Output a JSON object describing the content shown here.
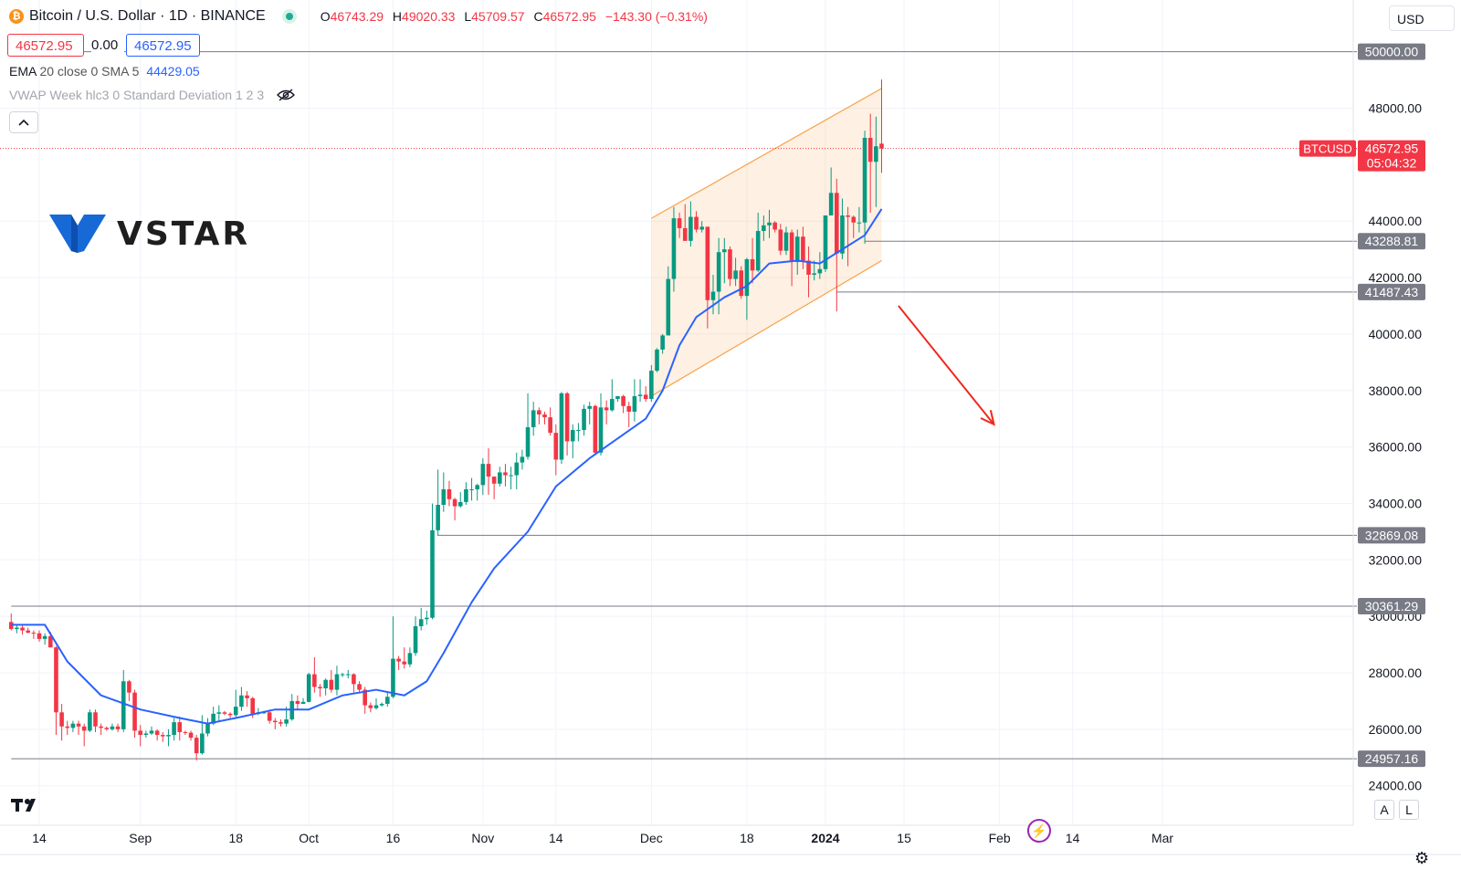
{
  "header": {
    "symbol_title": "Bitcoin / U.S. Dollar · 1D · BINANCE",
    "coin_glyph": "₿",
    "ohlc": {
      "o_label": "O",
      "o": "46743.29",
      "h_label": "H",
      "h": "49020.33",
      "l_label": "L",
      "l": "45709.57",
      "c_label": "C",
      "c": "46572.95",
      "change": "−143.30 (−0.31%)"
    },
    "currency_selector": "USD"
  },
  "price_boxes": {
    "bid": "46572.95",
    "spread": "0.00",
    "ask": "46572.95"
  },
  "indicators": {
    "ema_name": "EMA",
    "ema_params": "20 close 0 SMA 5",
    "ema_value": "44429.05",
    "vwap": "VWAP Week hlc3 0 Standard Deviation 1 2 3"
  },
  "logo": {
    "text": "VSTAR"
  },
  "buttons": {
    "auto": "A",
    "log": "L"
  },
  "colors": {
    "up": "#089981",
    "down": "#f23645",
    "ema": "#2962ff",
    "channel": "#f7a24a",
    "arrow": "#f0281e",
    "hline": "#787b86"
  },
  "chart_data": {
    "type": "candlestick",
    "title": "Bitcoin / U.S. Dollar · 1D · BINANCE",
    "symbol": "BTCUSD",
    "y_axis": {
      "min": 23300,
      "max": 50650,
      "ticks": [
        24000,
        26000,
        28000,
        30000,
        32000,
        34000,
        36000,
        38000,
        40000,
        42000,
        44000,
        48000
      ]
    },
    "x_axis_labels": [
      "14",
      "Sep",
      "18",
      "Oct",
      "16",
      "Nov",
      "14",
      "Dec",
      "18",
      "2024",
      "15",
      "Feb",
      "14",
      "Mar"
    ],
    "x_axis_bold": [
      "2024"
    ],
    "last_price": {
      "label": "BTCUSD",
      "value": 46572.95,
      "display": "46572.95",
      "countdown": "05:04:32"
    },
    "horizontal_levels": [
      {
        "value": 50000.0,
        "display": "50000.00",
        "from": "2023-08-09"
      },
      {
        "value": 43288.81,
        "display": "43288.81",
        "from": "2024-01-08"
      },
      {
        "value": 41487.43,
        "display": "41487.43",
        "from": "2024-01-03"
      },
      {
        "value": 32869.08,
        "display": "32869.08",
        "from": "2023-10-24"
      },
      {
        "value": 30361.29,
        "display": "30361.29",
        "from": "2023-08-09"
      },
      {
        "value": 24957.16,
        "display": "24957.16",
        "from": "2023-08-09"
      }
    ],
    "channel": {
      "upper": [
        [
          "2023-12-01",
          44100
        ],
        [
          "2024-01-11",
          48700
        ]
      ],
      "lower": [
        [
          "2023-12-01",
          37800
        ],
        [
          "2024-01-11",
          42600
        ]
      ]
    },
    "arrow": {
      "from": [
        "2024-01-14",
        41000
      ],
      "to": [
        "2024-01-31",
        36800
      ]
    },
    "ema": [
      [
        "2023-08-09",
        29700
      ],
      [
        "2023-08-15",
        29700
      ],
      [
        "2023-08-19",
        28400
      ],
      [
        "2023-08-25",
        27200
      ],
      [
        "2023-09-01",
        26700
      ],
      [
        "2023-09-08",
        26400
      ],
      [
        "2023-09-13",
        26200
      ],
      [
        "2023-09-18",
        26400
      ],
      [
        "2023-09-25",
        26700
      ],
      [
        "2023-10-01",
        26700
      ],
      [
        "2023-10-07",
        27200
      ],
      [
        "2023-10-13",
        27400
      ],
      [
        "2023-10-18",
        27200
      ],
      [
        "2023-10-22",
        27700
      ],
      [
        "2023-10-25",
        28700
      ],
      [
        "2023-10-30",
        30500
      ],
      [
        "2023-11-03",
        31700
      ],
      [
        "2023-11-09",
        33000
      ],
      [
        "2023-11-14",
        34600
      ],
      [
        "2023-11-20",
        35600
      ],
      [
        "2023-11-25",
        36300
      ],
      [
        "2023-11-30",
        37000
      ],
      [
        "2023-12-03",
        38000
      ],
      [
        "2023-12-06",
        39600
      ],
      [
        "2023-12-09",
        40600
      ],
      [
        "2023-12-14",
        41300
      ],
      [
        "2023-12-18",
        41700
      ],
      [
        "2023-12-22",
        42500
      ],
      [
        "2023-12-27",
        42600
      ],
      [
        "2023-12-31",
        42500
      ],
      [
        "2024-01-04",
        43000
      ],
      [
        "2024-01-08",
        43500
      ],
      [
        "2024-01-11",
        44429
      ]
    ],
    "candles": [
      [
        "2023-08-09",
        29800,
        30100,
        29500,
        29550
      ],
      [
        "2023-08-10",
        29550,
        29700,
        29400,
        29600
      ],
      [
        "2023-08-11",
        29600,
        29700,
        29350,
        29500
      ],
      [
        "2023-08-12",
        29500,
        29600,
        29400,
        29420
      ],
      [
        "2023-08-13",
        29420,
        29500,
        29200,
        29400
      ],
      [
        "2023-08-14",
        29400,
        29500,
        29100,
        29200
      ],
      [
        "2023-08-15",
        29200,
        29400,
        29000,
        29300
      ],
      [
        "2023-08-16",
        29300,
        29450,
        28900,
        28900
      ],
      [
        "2023-08-17",
        28900,
        28950,
        25800,
        26600
      ],
      [
        "2023-08-18",
        26600,
        26900,
        25600,
        26100
      ],
      [
        "2023-08-19",
        26100,
        26300,
        25800,
        26050
      ],
      [
        "2023-08-20",
        26050,
        26300,
        25900,
        26200
      ],
      [
        "2023-08-21",
        26200,
        26300,
        25800,
        26100
      ],
      [
        "2023-08-22",
        26100,
        26200,
        25400,
        25950
      ],
      [
        "2023-08-23",
        25950,
        26700,
        25900,
        26600
      ],
      [
        "2023-08-24",
        26600,
        26700,
        25900,
        26100
      ],
      [
        "2023-08-25",
        26100,
        26200,
        25800,
        26050
      ],
      [
        "2023-08-26",
        26050,
        26100,
        25950,
        26000
      ],
      [
        "2023-08-27",
        26000,
        26200,
        25950,
        26100
      ],
      [
        "2023-08-28",
        26100,
        26200,
        25900,
        26000
      ],
      [
        "2023-08-29",
        26000,
        28100,
        25900,
        27700
      ],
      [
        "2023-08-30",
        27700,
        27750,
        27000,
        27300
      ],
      [
        "2023-08-31",
        27300,
        27400,
        25700,
        25950
      ],
      [
        "2023-09-01",
        25950,
        26150,
        25400,
        25800
      ],
      [
        "2023-09-02",
        25800,
        25950,
        25700,
        25850
      ],
      [
        "2023-09-03",
        25850,
        26100,
        25800,
        25950
      ],
      [
        "2023-09-04",
        25950,
        26000,
        25600,
        25800
      ],
      [
        "2023-09-05",
        25800,
        25900,
        25550,
        25750
      ],
      [
        "2023-09-06",
        25750,
        26000,
        25400,
        25800
      ],
      [
        "2023-09-07",
        25800,
        26400,
        25600,
        26250
      ],
      [
        "2023-09-08",
        26250,
        26450,
        25600,
        25900
      ],
      [
        "2023-09-09",
        25900,
        25950,
        25800,
        25880
      ],
      [
        "2023-09-10",
        25880,
        25950,
        25600,
        25700
      ],
      [
        "2023-09-11",
        25700,
        25800,
        24900,
        25150
      ],
      [
        "2023-09-12",
        25150,
        26500,
        25100,
        25850
      ],
      [
        "2023-09-13",
        25850,
        26400,
        25750,
        26200
      ],
      [
        "2023-09-14",
        26200,
        26800,
        26150,
        26550
      ],
      [
        "2023-09-15",
        26550,
        26850,
        26250,
        26600
      ],
      [
        "2023-09-16",
        26600,
        26650,
        26500,
        26550
      ],
      [
        "2023-09-17",
        26550,
        26600,
        26400,
        26500
      ],
      [
        "2023-09-18",
        26500,
        27400,
        26400,
        26800
      ],
      [
        "2023-09-19",
        26800,
        27500,
        26650,
        27200
      ],
      [
        "2023-09-20",
        27200,
        27350,
        26800,
        27100
      ],
      [
        "2023-09-21",
        27100,
        27150,
        26400,
        26550
      ],
      [
        "2023-09-22",
        26550,
        26750,
        26500,
        26600
      ],
      [
        "2023-09-23",
        26600,
        26650,
        26550,
        26600
      ],
      [
        "2023-09-24",
        26600,
        26700,
        26200,
        26300
      ],
      [
        "2023-09-25",
        26300,
        26400,
        26000,
        26250
      ],
      [
        "2023-09-26",
        26250,
        26350,
        26100,
        26200
      ],
      [
        "2023-09-27",
        26200,
        26800,
        26100,
        26350
      ],
      [
        "2023-09-28",
        26350,
        27250,
        26300,
        27000
      ],
      [
        "2023-09-29",
        27000,
        27200,
        26700,
        26900
      ],
      [
        "2023-09-30",
        26900,
        27100,
        26900,
        26970
      ],
      [
        "2023-10-01",
        26970,
        28000,
        26950,
        27950
      ],
      [
        "2023-10-02",
        27950,
        28550,
        27300,
        27500
      ],
      [
        "2023-10-03",
        27500,
        27600,
        27150,
        27450
      ],
      [
        "2023-10-04",
        27450,
        27800,
        27200,
        27750
      ],
      [
        "2023-10-05",
        27750,
        28100,
        27300,
        27400
      ],
      [
        "2023-10-06",
        27400,
        28250,
        27200,
        27950
      ],
      [
        "2023-10-07",
        27950,
        28000,
        27850,
        27950
      ],
      [
        "2023-10-08",
        27950,
        28100,
        27800,
        27950
      ],
      [
        "2023-10-09",
        27950,
        27980,
        27300,
        27600
      ],
      [
        "2023-10-10",
        27600,
        27700,
        27300,
        27400
      ],
      [
        "2023-10-11",
        27400,
        27500,
        26550,
        26850
      ],
      [
        "2023-10-12",
        26850,
        26950,
        26600,
        26750
      ],
      [
        "2023-10-13",
        26750,
        27100,
        26700,
        26850
      ],
      [
        "2023-10-14",
        26850,
        26950,
        26800,
        26900
      ],
      [
        "2023-10-15",
        26900,
        27300,
        26800,
        27150
      ],
      [
        "2023-10-16",
        27150,
        30000,
        27100,
        28500
      ],
      [
        "2023-10-17",
        28500,
        28600,
        28100,
        28400
      ],
      [
        "2023-10-18",
        28400,
        28900,
        28150,
        28300
      ],
      [
        "2023-10-19",
        28300,
        28900,
        28200,
        28700
      ],
      [
        "2023-10-20",
        28700,
        30000,
        28600,
        29650
      ],
      [
        "2023-10-21",
        29650,
        30300,
        29500,
        29900
      ],
      [
        "2023-10-22",
        29900,
        30200,
        29700,
        29950
      ],
      [
        "2023-10-23",
        29950,
        34000,
        29900,
        33050
      ],
      [
        "2023-10-24",
        33050,
        35200,
        32850,
        33950
      ],
      [
        "2023-10-25",
        33950,
        35100,
        33700,
        34500
      ],
      [
        "2023-10-26",
        34500,
        34800,
        33900,
        34150
      ],
      [
        "2023-10-27",
        34150,
        34200,
        33400,
        33900
      ],
      [
        "2023-10-28",
        33900,
        34400,
        33850,
        34050
      ],
      [
        "2023-10-29",
        34050,
        34750,
        33950,
        34500
      ],
      [
        "2023-10-30",
        34500,
        34900,
        34100,
        34500
      ],
      [
        "2023-10-31",
        34500,
        34700,
        34100,
        34650
      ],
      [
        "2023-11-01",
        34650,
        35600,
        34300,
        35400
      ],
      [
        "2023-11-02",
        35400,
        35950,
        34300,
        34950
      ],
      [
        "2023-11-03",
        34950,
        34950,
        34150,
        34700
      ],
      [
        "2023-11-04",
        34700,
        35300,
        34600,
        35100
      ],
      [
        "2023-11-05",
        35100,
        35400,
        34600,
        35000
      ],
      [
        "2023-11-06",
        35000,
        35300,
        34500,
        35000
      ],
      [
        "2023-11-07",
        35000,
        35800,
        34500,
        35450
      ],
      [
        "2023-11-08",
        35450,
        35900,
        35200,
        35650
      ],
      [
        "2023-11-09",
        35650,
        37900,
        35550,
        36700
      ],
      [
        "2023-11-10",
        36700,
        37600,
        36400,
        37300
      ],
      [
        "2023-11-11",
        37300,
        37400,
        36800,
        37150
      ],
      [
        "2023-11-12",
        37150,
        37250,
        36800,
        37050
      ],
      [
        "2023-11-13",
        37050,
        37400,
        36400,
        36500
      ],
      [
        "2023-11-14",
        36500,
        36800,
        35000,
        35550
      ],
      [
        "2023-11-15",
        35550,
        37950,
        35400,
        37900
      ],
      [
        "2023-11-16",
        37900,
        37950,
        35700,
        36200
      ],
      [
        "2023-11-17",
        36200,
        36800,
        35600,
        36600
      ],
      [
        "2023-11-18",
        36600,
        36850,
        36200,
        36600
      ],
      [
        "2023-11-19",
        36600,
        37500,
        36400,
        37350
      ],
      [
        "2023-11-20",
        37350,
        37600,
        36800,
        37450
      ],
      [
        "2023-11-21",
        37450,
        37500,
        35750,
        35800
      ],
      [
        "2023-11-22",
        35800,
        37900,
        35700,
        37400
      ],
      [
        "2023-11-23",
        37400,
        37650,
        36800,
        37300
      ],
      [
        "2023-11-24",
        37300,
        38400,
        37250,
        37700
      ],
      [
        "2023-11-25",
        37700,
        37800,
        37600,
        37800
      ],
      [
        "2023-11-26",
        37800,
        37850,
        37200,
        37450
      ],
      [
        "2023-11-27",
        37450,
        37600,
        36700,
        37250
      ],
      [
        "2023-11-28",
        37250,
        38400,
        36900,
        37800
      ],
      [
        "2023-11-29",
        37800,
        38400,
        37600,
        37850
      ],
      [
        "2023-11-30",
        37850,
        38150,
        37600,
        37700
      ],
      [
        "2023-12-01",
        37700,
        38900,
        37600,
        38700
      ],
      [
        "2023-12-02",
        38700,
        39500,
        38650,
        39450
      ],
      [
        "2023-12-03",
        39450,
        40000,
        39300,
        39950
      ],
      [
        "2023-12-04",
        39950,
        42400,
        39950,
        41950
      ],
      [
        "2023-12-05",
        41950,
        44500,
        41500,
        44100
      ],
      [
        "2023-12-06",
        44100,
        44300,
        43400,
        43750
      ],
      [
        "2023-12-07",
        43750,
        44600,
        43300,
        43300
      ],
      [
        "2023-12-08",
        43300,
        44700,
        43100,
        44150
      ],
      [
        "2023-12-09",
        44150,
        44350,
        43600,
        43700
      ],
      [
        "2023-12-10",
        43700,
        44000,
        43600,
        43800
      ],
      [
        "2023-12-11",
        43800,
        43800,
        40200,
        41200
      ],
      [
        "2023-12-12",
        41200,
        42100,
        40700,
        41500
      ],
      [
        "2023-12-13",
        41500,
        43400,
        40700,
        42900
      ],
      [
        "2023-12-14",
        42900,
        43400,
        41800,
        43000
      ],
      [
        "2023-12-15",
        43000,
        43100,
        41700,
        41950
      ],
      [
        "2023-12-16",
        41950,
        42700,
        41700,
        42250
      ],
      [
        "2023-12-17",
        42250,
        42400,
        41250,
        41350
      ],
      [
        "2023-12-18",
        41350,
        42700,
        40500,
        42650
      ],
      [
        "2023-12-19",
        42650,
        43400,
        41800,
        42250
      ],
      [
        "2023-12-20",
        42250,
        44300,
        42200,
        43650
      ],
      [
        "2023-12-21",
        43650,
        44200,
        43300,
        43850
      ],
      [
        "2023-12-22",
        43850,
        44400,
        43400,
        43950
      ],
      [
        "2023-12-23",
        43950,
        44000,
        43600,
        43700
      ],
      [
        "2023-12-24",
        43700,
        43900,
        42800,
        42950
      ],
      [
        "2023-12-25",
        42950,
        43800,
        42800,
        43600
      ],
      [
        "2023-12-26",
        43600,
        43700,
        41700,
        42550
      ],
      [
        "2023-12-27",
        42550,
        43700,
        42100,
        43450
      ],
      [
        "2023-12-28",
        43450,
        43800,
        42300,
        42600
      ],
      [
        "2023-12-29",
        42600,
        43100,
        41300,
        42100
      ],
      [
        "2023-12-30",
        42100,
        42600,
        41900,
        42150
      ],
      [
        "2023-12-31",
        42150,
        42900,
        41950,
        42300
      ],
      [
        "2024-01-01",
        42300,
        44200,
        42200,
        44200
      ],
      [
        "2024-01-02",
        44200,
        45900,
        44200,
        45000
      ],
      [
        "2024-01-03",
        45000,
        45500,
        40800,
        42850
      ],
      [
        "2024-01-04",
        42850,
        44800,
        42650,
        44200
      ],
      [
        "2024-01-05",
        44200,
        44500,
        42400,
        44150
      ],
      [
        "2024-01-06",
        44150,
        44200,
        43400,
        43950
      ],
      [
        "2024-01-07",
        43950,
        44500,
        43600,
        43950
      ],
      [
        "2024-01-08",
        43950,
        47200,
        43200,
        46950
      ],
      [
        "2024-01-09",
        46950,
        47800,
        44300,
        46100
      ],
      [
        "2024-01-10",
        46100,
        47700,
        44500,
        46650
      ],
      [
        "2024-01-11",
        46743.29,
        49020.33,
        45709.57,
        46572.95
      ]
    ]
  }
}
